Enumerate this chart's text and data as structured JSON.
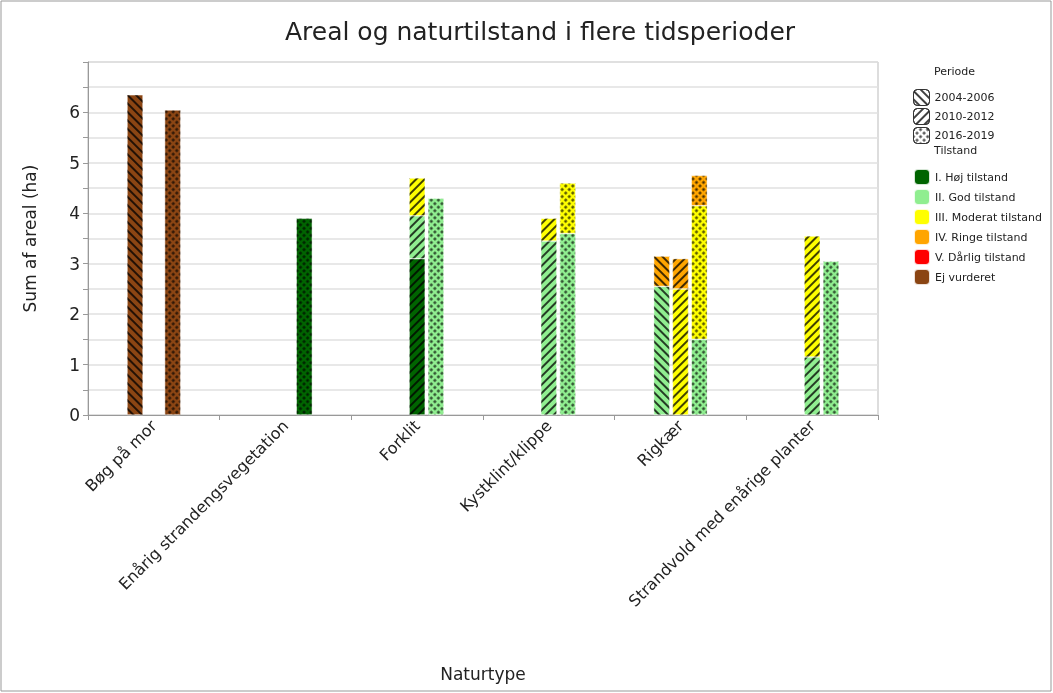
{
  "chart_data": {
    "type": "bar",
    "title": "Areal og naturtilstand i flere tidsperioder",
    "xlabel": "Naturtype",
    "ylabel": "Sum af areal (ha)",
    "legend_title": [
      "Periode",
      "Tilstand"
    ],
    "categories": [
      null,
      null,
      null,
      "Bøg på mor",
      null,
      null,
      null,
      null,
      null,
      null,
      "Enårig strandengsvegetation",
      null,
      null,
      null,
      null,
      null,
      null,
      "Forklit",
      null,
      null,
      null,
      null,
      null,
      null,
      "Kystklint/klippe",
      null,
      null,
      null,
      null,
      null,
      null,
      "Rigkær",
      null,
      null,
      null,
      null,
      null,
      null,
      "Strandvold med enårige planter",
      null,
      null,
      null
    ],
    "stacked": true,
    "ylim": [
      0,
      7
    ],
    "yticks": [
      0,
      {
        "value": 0.5,
        "label": null
      },
      1,
      {
        "value": 1.5,
        "label": null
      },
      2,
      {
        "value": 2.5,
        "label": null
      },
      3,
      {
        "value": 3.5,
        "label": null
      },
      4,
      {
        "value": 4.5,
        "label": null
      },
      5,
      {
        "value": 5.5,
        "label": null
      },
      6,
      {
        "value": 6.5,
        "label": null
      },
      {
        "value": 7,
        "label": null
      }
    ],
    "grid": "y",
    "legend": "right",
    "series": [
      {
        "name": "2004-2006",
        "color": "#ffffff",
        "values": [
          null,
          null,
          null,
          null,
          null,
          null,
          null,
          null,
          null,
          null,
          null,
          null,
          null,
          null,
          null,
          null,
          null,
          null,
          null,
          null,
          null,
          null,
          null,
          null,
          null,
          null,
          null,
          null,
          null,
          null,
          null,
          null,
          null,
          null,
          null,
          null,
          null,
          null,
          null,
          null,
          null,
          null
        ]
      },
      {
        "name": "2010-2012",
        "color": "#ffffff",
        "values": [
          null,
          null,
          null,
          null,
          null,
          null,
          null,
          null,
          null,
          null,
          null,
          null,
          null,
          null,
          null,
          null,
          null,
          null,
          null,
          null,
          null,
          null,
          null,
          null,
          null,
          null,
          null,
          null,
          null,
          null,
          null,
          null,
          null,
          null,
          null,
          null,
          null,
          null,
          null,
          null,
          null,
          null
        ]
      },
      {
        "name": "2016-2019",
        "color": "#ffffff",
        "values": [
          null,
          null,
          null,
          null,
          null,
          null,
          null,
          null,
          null,
          null,
          null,
          null,
          null,
          null,
          null,
          null,
          null,
          null,
          null,
          null,
          null,
          null,
          null,
          null,
          null,
          null,
          null,
          null,
          null,
          null,
          null,
          null,
          null,
          null,
          null,
          null,
          null,
          null,
          null,
          null,
          null,
          null
        ]
      },
      {
        "name": "I. Høj tilstand",
        "color": "#006400",
        "values": [
          null,
          null,
          null,
          null,
          null,
          null,
          null,
          null,
          null,
          null,
          null,
          3.9,
          null,
          null,
          null,
          null,
          null,
          3.1,
          null,
          null,
          null,
          null,
          null,
          null,
          null,
          null,
          null,
          null,
          null,
          null,
          null,
          null,
          null,
          null,
          null,
          null,
          null,
          null,
          null,
          null,
          null,
          null
        ]
      },
      {
        "name": "II. God tilstand",
        "color": "#90ee90",
        "values": [
          null,
          null,
          null,
          null,
          null,
          null,
          null,
          null,
          null,
          null,
          null,
          null,
          null,
          null,
          null,
          null,
          null,
          0.85,
          4.3,
          null,
          null,
          null,
          null,
          null,
          3.45,
          3.6,
          null,
          null,
          null,
          null,
          2.55,
          null,
          1.5,
          null,
          null,
          null,
          null,
          null,
          1.15,
          3.05,
          null,
          null
        ]
      },
      {
        "name": "III. Moderat tilstand",
        "color": "#ffff00",
        "values": [
          null,
          null,
          null,
          null,
          null,
          null,
          null,
          null,
          null,
          null,
          null,
          null,
          null,
          null,
          null,
          null,
          null,
          0.75,
          null,
          null,
          null,
          null,
          null,
          null,
          0.45,
          1.0,
          null,
          null,
          null,
          null,
          null,
          2.5,
          2.65,
          null,
          null,
          null,
          null,
          null,
          2.4,
          null,
          null,
          null
        ]
      },
      {
        "name": "IV. Ringe tilstand",
        "color": "#ffa500",
        "values": [
          null,
          null,
          null,
          null,
          null,
          null,
          null,
          null,
          null,
          null,
          null,
          null,
          null,
          null,
          null,
          null,
          null,
          null,
          null,
          null,
          null,
          null,
          null,
          null,
          null,
          null,
          null,
          null,
          null,
          null,
          0.6,
          0.6,
          0.6,
          null,
          null,
          null,
          null,
          null,
          null,
          null,
          null,
          null
        ]
      },
      {
        "name": "V. Dårlig tilstand",
        "color": "#ff0000",
        "values": [
          null,
          null,
          null,
          null,
          null,
          null,
          null,
          null,
          null,
          null,
          null,
          null,
          null,
          null,
          null,
          null,
          null,
          null,
          null,
          null,
          null,
          null,
          null,
          null,
          null,
          null,
          null,
          null,
          null,
          null,
          null,
          null,
          null,
          null,
          null,
          null,
          null,
          null,
          null,
          null,
          null,
          null
        ]
      },
      {
        "name": "Ej vurderet",
        "color": "#8b4513",
        "values": [
          null,
          null,
          6.35,
          null,
          6.05,
          null,
          null,
          null,
          null,
          null,
          null,
          null,
          null,
          null,
          null,
          null,
          null,
          null,
          null,
          null,
          null,
          null,
          null,
          null,
          null,
          null,
          null,
          null,
          null,
          null,
          null,
          null,
          null,
          null,
          null,
          null,
          null,
          null,
          null,
          null,
          null,
          null
        ]
      }
    ]
  }
}
